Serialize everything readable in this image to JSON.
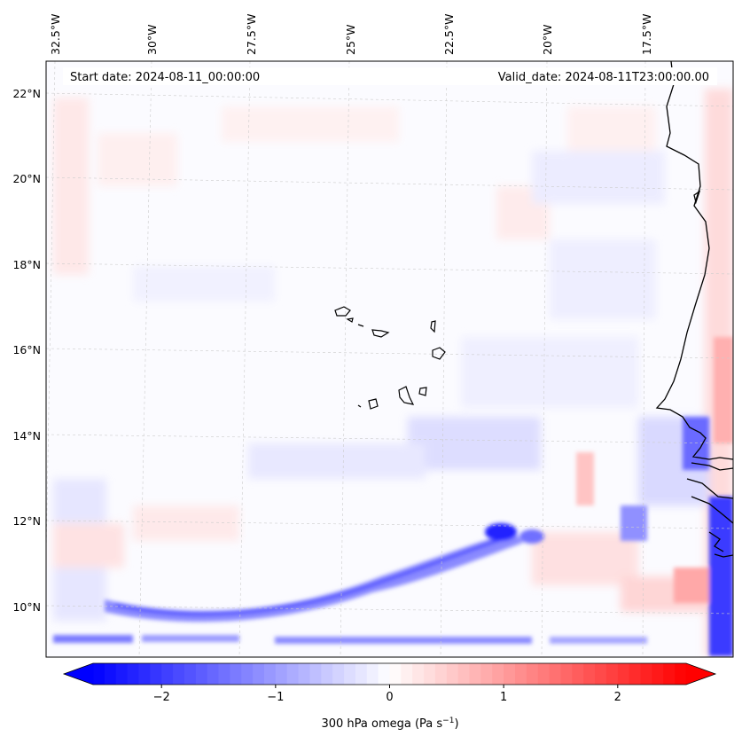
{
  "map": {
    "start_date": "Start date: 2024-08-11_00:00:00",
    "valid_date": "Valid_date: 2024-08-11T23:00:00.00",
    "lon_labels": [
      "32.5°W",
      "30°W",
      "27.5°W",
      "25°W",
      "22.5°W",
      "20°W",
      "17.5°W"
    ],
    "lat_labels": [
      "22°N",
      "20°N",
      "18°N",
      "16°N",
      "14°N",
      "12°N",
      "10°N"
    ],
    "coastline_color": "#000000",
    "gridline_color": "#c8c8c8"
  },
  "colorbar": {
    "label": "300 hPa omega (Pa s",
    "label_superscript": "−1",
    "label_suffix": ")",
    "ticks": [
      "−2",
      "−1",
      "0",
      "1",
      "2"
    ],
    "tick_values": [
      -2,
      -1,
      0,
      1,
      2
    ],
    "range": [
      -2.6,
      2.6
    ],
    "extend": "both",
    "colormap": "bwr",
    "min_color": "#0000ff",
    "mid_color": "#ffffff",
    "max_color": "#ff0000"
  }
}
